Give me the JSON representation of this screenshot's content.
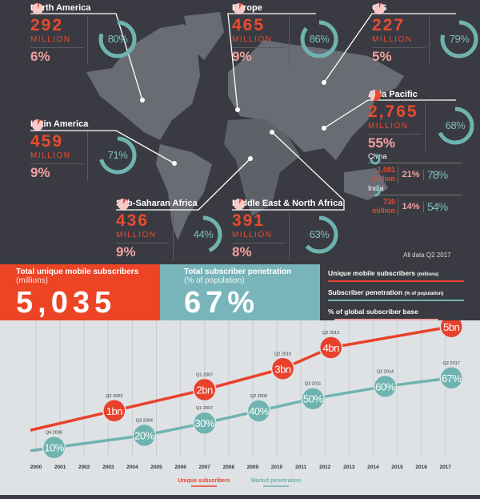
{
  "regions": [
    {
      "id": "north-america",
      "name": "North America",
      "subscribers": "292",
      "unit": "MILLION",
      "share": "6%",
      "share_value": 6,
      "penetration": "80%",
      "penetration_value": 80
    },
    {
      "id": "europe",
      "name": "Europe",
      "subscribers": "465",
      "unit": "MILLION",
      "share": "9%",
      "share_value": 9,
      "penetration": "86%",
      "penetration_value": 86
    },
    {
      "id": "cis",
      "name": "CIS",
      "subscribers": "227",
      "unit": "MILLION",
      "share": "5%",
      "share_value": 5,
      "penetration": "79%",
      "penetration_value": 79
    },
    {
      "id": "asia-pacific",
      "name": "Asia Pacific",
      "subscribers": "2,765",
      "unit": "MILLION",
      "share": "55%",
      "share_value": 55,
      "penetration": "68%",
      "penetration_value": 68
    },
    {
      "id": "latin-america",
      "name": "Latin America",
      "subscribers": "459",
      "unit": "MILLION",
      "share": "9%",
      "share_value": 9,
      "penetration": "71%",
      "penetration_value": 71
    },
    {
      "id": "sub-saharan-africa",
      "name": "Sub-Saharan Africa",
      "subscribers": "436",
      "unit": "MILLION",
      "share": "9%",
      "share_value": 9,
      "penetration": "44%",
      "penetration_value": 44
    },
    {
      "id": "middle-east-north-africa",
      "name": "Middle East & North Africa",
      "subscribers": "391",
      "unit": "MILLION",
      "share": "8%",
      "share_value": 8,
      "penetration": "63%",
      "penetration_value": 63
    }
  ],
  "countries": [
    {
      "name": "China",
      "subscribers": "1,081",
      "unit": "million",
      "share": "21%",
      "penetration": "78%",
      "penetration_value": 78
    },
    {
      "name": "India",
      "subscribers": "730",
      "unit": "million",
      "share": "14%",
      "penetration": "54%",
      "penetration_value": 54
    }
  ],
  "note": "All data Q2 2017",
  "stats": {
    "subscribers": {
      "title": "Total unique mobile subscribers",
      "sub": "(millions)",
      "value": "5,035"
    },
    "penetration": {
      "title": "Total subscriber penetration",
      "sub": "(% of population)",
      "value": "67%"
    }
  },
  "legend": [
    {
      "label": "Unique mobile subscribers",
      "small": "(millions)",
      "color": "#e8412c"
    },
    {
      "label": "Subscriber penetration",
      "small": "(% of population)",
      "color": "#6fb3b0"
    },
    {
      "label": "% of global subscriber base",
      "small": "",
      "color": "#f2a0a0"
    }
  ],
  "colors": {
    "red": "#e8412c",
    "teal": "#6fb3b0",
    "pink": "#f2a0a0",
    "dark": "#3a3b42",
    "land": "#6a6c74"
  },
  "chart_data": {
    "type": "line",
    "categories": [
      "2000",
      "2001",
      "2002",
      "2003",
      "2004",
      "2005",
      "2006",
      "2007",
      "2008",
      "2009",
      "2010",
      "2011",
      "2012",
      "2013",
      "2014",
      "2015",
      "2016",
      "2017"
    ],
    "series": [
      {
        "name": "Unique subscribers",
        "color": "#e8412c",
        "points": [
          {
            "quarter": "Q2 2003",
            "value": 1,
            "label": "1bn"
          },
          {
            "quarter": "Q1 2007",
            "value": 2,
            "label": "2bn"
          },
          {
            "quarter": "Q2 2010",
            "value": 3,
            "label": "3bn"
          },
          {
            "quarter": "Q2 2012",
            "value": 4,
            "label": "4bn"
          },
          {
            "quarter": "Q2 2017",
            "value": 5,
            "label": "5bn"
          }
        ]
      },
      {
        "name": "Market penetration",
        "color": "#6fb3b0",
        "points": [
          {
            "quarter": "Q4 2000",
            "value": 10,
            "label": "10%"
          },
          {
            "quarter": "Q3 2004",
            "value": 20,
            "label": "20%"
          },
          {
            "quarter": "Q1 2007",
            "value": 30,
            "label": "30%"
          },
          {
            "quarter": "Q2 2009",
            "value": 40,
            "label": "40%"
          },
          {
            "quarter": "Q3 2011",
            "value": 50,
            "label": "50%"
          },
          {
            "quarter": "Q3 2014",
            "value": 60,
            "label": "60%"
          },
          {
            "quarter": "Q2 2017",
            "value": 67,
            "label": "67%"
          }
        ]
      }
    ],
    "grid": "vertical",
    "legend": "bottom"
  }
}
